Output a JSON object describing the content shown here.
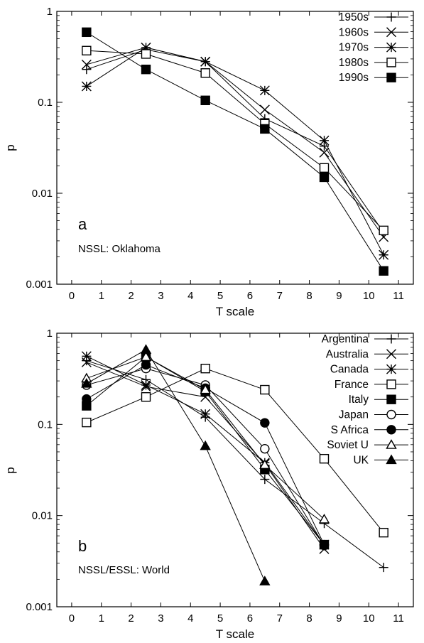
{
  "chart_data": [
    {
      "type": "line",
      "panel_label": "a",
      "annotation": "NSSL: Oklahoma",
      "xlabel": "T scale",
      "ylabel": "p",
      "yscale": "log",
      "xlim": [
        -0.5,
        11.5
      ],
      "ylim": [
        0.001,
        1
      ],
      "xticks": [
        "0",
        "1",
        "2",
        "3",
        "4",
        "5",
        "6",
        "7",
        "8",
        "9",
        "10",
        "11"
      ],
      "yticks": [
        "0.001",
        "0.01",
        "0.1",
        "1"
      ],
      "legend_position": "top-right",
      "x": [
        0.5,
        2.5,
        4.5,
        6.5,
        8.5,
        10.5
      ],
      "series": [
        {
          "name": "1950s",
          "marker": "plus",
          "values": [
            0.23,
            0.38,
            0.28,
            0.066,
            0.033,
            0.0037
          ]
        },
        {
          "name": "1960s",
          "marker": "cross",
          "values": [
            0.26,
            0.4,
            0.28,
            0.083,
            0.028,
            0.0033
          ]
        },
        {
          "name": "1970s",
          "marker": "star",
          "values": [
            0.15,
            0.4,
            0.28,
            0.135,
            0.038,
            0.0021
          ]
        },
        {
          "name": "1980s",
          "marker": "open-square",
          "values": [
            0.37,
            0.34,
            0.21,
            0.058,
            0.019,
            0.0039
          ]
        },
        {
          "name": "1990s",
          "marker": "filled-square",
          "values": [
            0.59,
            0.23,
            0.105,
            0.051,
            0.015,
            0.0014
          ]
        }
      ]
    },
    {
      "type": "line",
      "panel_label": "b",
      "annotation": "NSSL/ESSL: World",
      "xlabel": "T scale",
      "ylabel": "p",
      "yscale": "log",
      "xlim": [
        -0.5,
        11.5
      ],
      "ylim": [
        0.001,
        1
      ],
      "xticks": [
        "0",
        "1",
        "2",
        "3",
        "4",
        "5",
        "6",
        "7",
        "8",
        "9",
        "10",
        "11"
      ],
      "yticks": [
        "0.001",
        "0.01",
        "0.1",
        "1"
      ],
      "legend_position": "top-right",
      "x": [
        0.5,
        2.5,
        4.5,
        6.5,
        8.5,
        10.5
      ],
      "series": [
        {
          "name": "Argentina",
          "marker": "plus",
          "values": [
            0.5,
            0.31,
            0.12,
            0.025,
            0.0082,
            0.0027
          ]
        },
        {
          "name": "Australia",
          "marker": "cross",
          "values": [
            0.48,
            0.26,
            0.2,
            0.037,
            0.0043,
            null
          ]
        },
        {
          "name": "Canada",
          "marker": "star",
          "values": [
            0.56,
            0.27,
            0.13,
            0.038,
            0.0048,
            null
          ]
        },
        {
          "name": "France",
          "marker": "open-square",
          "values": [
            0.105,
            0.2,
            0.41,
            0.24,
            0.042,
            0.0065
          ]
        },
        {
          "name": "Italy",
          "marker": "filled-square",
          "values": [
            0.16,
            0.55,
            0.23,
            0.032,
            0.0048,
            null
          ]
        },
        {
          "name": "Japan",
          "marker": "open-circle",
          "values": [
            0.27,
            0.41,
            0.27,
            0.054,
            0.0047,
            null
          ]
        },
        {
          "name": "S Africa",
          "marker": "filled-circle",
          "values": [
            0.19,
            0.45,
            0.25,
            0.104,
            0.0048,
            null
          ]
        },
        {
          "name": "Soviet U",
          "marker": "open-triangle",
          "values": [
            0.32,
            0.55,
            0.24,
            0.036,
            0.0091,
            null
          ]
        },
        {
          "name": "UK",
          "marker": "filled-triangle",
          "values": [
            0.28,
            0.66,
            0.058,
            0.0019,
            null,
            null
          ]
        }
      ]
    }
  ]
}
